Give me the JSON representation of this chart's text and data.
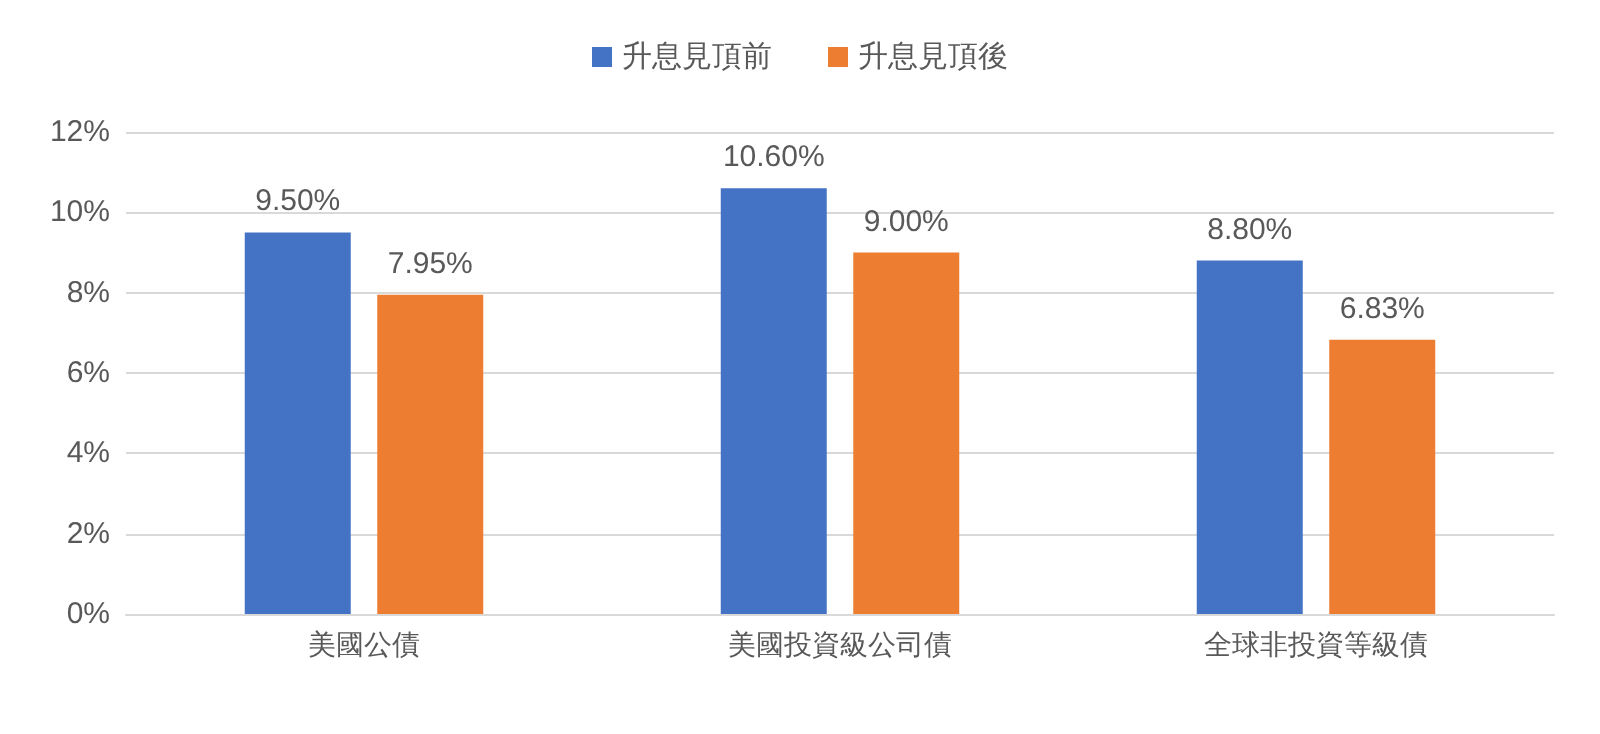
{
  "chart_data": {
    "type": "bar",
    "categories": [
      "美國公債",
      "美國投資級公司債",
      "全球非投資等級債"
    ],
    "series": [
      {
        "name": "升息見頂前",
        "color": "#4472c4",
        "values": [
          9.5,
          10.6,
          8.8
        ],
        "value_labels": [
          "9.50%",
          "10.60%",
          "8.80%"
        ]
      },
      {
        "name": "升息見頂後",
        "color": "#ed7d31",
        "values": [
          7.95,
          9.0,
          6.83
        ],
        "value_labels": [
          "7.95%",
          "9.00%",
          "6.83%"
        ]
      }
    ],
    "ylim": [
      0,
      12
    ],
    "yticks": [
      {
        "value": 0,
        "label": "0%"
      },
      {
        "value": 2,
        "label": "2%"
      },
      {
        "value": 4,
        "label": "4%"
      },
      {
        "value": 6,
        "label": "6%"
      },
      {
        "value": 8,
        "label": "8%"
      },
      {
        "value": 10,
        "label": "10%"
      },
      {
        "value": 12,
        "label": "12%"
      }
    ],
    "grid": "y",
    "legend": "top"
  }
}
